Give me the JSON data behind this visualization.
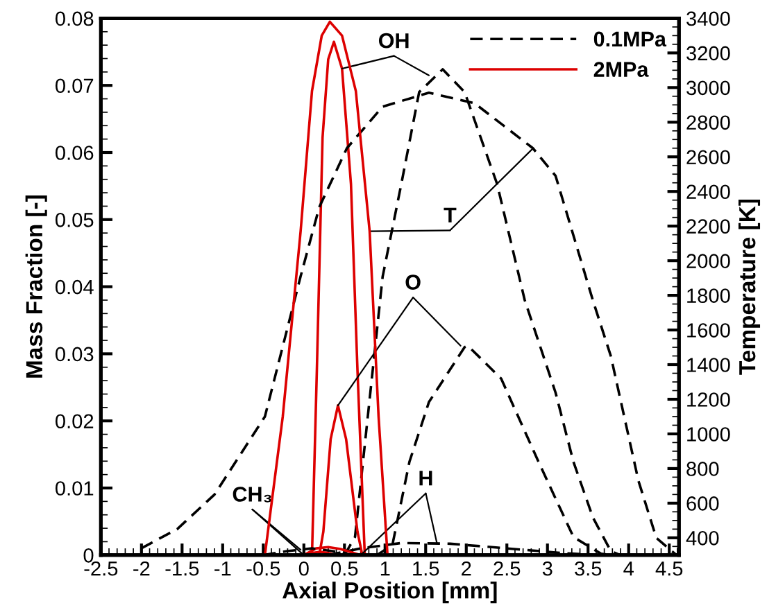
{
  "chart_data": {
    "type": "line",
    "xlabel": "Axial Position [mm]",
    "ylabel": "Mass Fraction [-]",
    "y2label": "Temperature [K]",
    "xlim": [
      -2.5,
      4.62
    ],
    "xticks": [
      -2.5,
      -2,
      -1.5,
      -1,
      -0.5,
      0,
      0.5,
      1,
      1.5,
      2,
      2.5,
      3,
      3.5,
      4,
      4.5
    ],
    "ylim": [
      0,
      0.08
    ],
    "yticks": [
      0,
      0.01,
      0.02,
      0.03,
      0.04,
      0.05,
      0.06,
      0.07,
      0.08
    ],
    "y2lim": [
      300,
      3400
    ],
    "y2ticks": [
      400,
      600,
      800,
      1000,
      1200,
      1400,
      1600,
      1800,
      2000,
      2200,
      2400,
      2600,
      2800,
      3000,
      3200,
      3400
    ],
    "legend": "top right",
    "grid": false,
    "marker": "none",
    "series": [
      {
        "name": "0.1MPa",
        "color": "#000000",
        "line_style": "dashed",
        "x": [
          0.5,
          0.63,
          0.97,
          1.2,
          1.42,
          1.71,
          1.98,
          2.38,
          2.72,
          3.1,
          3.32,
          3.56,
          3.78,
          3.9
        ],
        "values": [
          0,
          0.0027,
          0.0415,
          0.0553,
          0.069,
          0.0724,
          0.069,
          0.0553,
          0.038,
          0.0242,
          0.0139,
          0.0056,
          0.0006,
          0
        ]
      },
      {
        "name": "2MPa",
        "color": "#dd0000",
        "line_style": "solid",
        "x": [
          0.1,
          0.16,
          0.23,
          0.3,
          0.37,
          0.47,
          0.58,
          0.66,
          0.75
        ],
        "values": [
          0,
          0.0276,
          0.0622,
          0.0739,
          0.0765,
          0.0725,
          0.0553,
          0.0276,
          0
        ]
      },
      {
        "color": "#000000",
        "line_style": "dashed",
        "axis": "y2",
        "x": [
          -2.0,
          -1.56,
          -1.1,
          -0.48,
          -0.04,
          0.19,
          0.53,
          0.97,
          1.54,
          2.1,
          2.82,
          3.1,
          3.56,
          3.78,
          4.12,
          4.34,
          4.59
        ],
        "values": [
          340,
          450,
          650,
          1100,
          1910,
          2310,
          2650,
          2890,
          2970,
          2910,
          2650,
          2490,
          1770,
          1450,
          730,
          400,
          300
        ]
      },
      {
        "color": "#dd0000",
        "line_style": "solid",
        "axis": "y2",
        "x": [
          -0.48,
          -0.26,
          -0.04,
          0.1,
          0.22,
          0.32,
          0.47,
          0.64,
          0.81,
          0.92,
          1.03
        ],
        "values": [
          300,
          1100,
          2170,
          2980,
          3300,
          3380,
          3300,
          2980,
          2170,
          1100,
          300
        ]
      },
      {
        "color": "#000000",
        "line_style": "dashed",
        "x": [
          0.9,
          1.09,
          1.3,
          1.54,
          1.98,
          2.02,
          2.43,
          2.89,
          3.32,
          3.66,
          3.8
        ],
        "values": [
          0,
          0.0015,
          0.0139,
          0.0228,
          0.031,
          0.0312,
          0.0263,
          0.0139,
          0.0027,
          0.0002,
          0
        ]
      },
      {
        "color": "#dd0000",
        "line_style": "solid",
        "x": [
          0.19,
          0.24,
          0.33,
          0.42,
          0.52,
          0.66,
          0.72
        ],
        "values": [
          0,
          0.0035,
          0.0173,
          0.0223,
          0.0173,
          0.0035,
          0
        ]
      },
      {
        "color": "#000000",
        "line_style": "dashed",
        "x": [
          0.3,
          0.7,
          1.2,
          1.8,
          2.5,
          3.2,
          3.6
        ],
        "values": [
          0,
          0.001,
          0.0018,
          0.0017,
          0.001,
          0.0003,
          0
        ]
      },
      {
        "color": "#dd0000",
        "line_style": "solid",
        "x": [
          0.0,
          0.15,
          0.3,
          0.45,
          0.7
        ],
        "values": [
          0,
          0.001,
          0.0012,
          0.0009,
          0
        ]
      },
      {
        "color": "#000000",
        "line_style": "dashed",
        "x": [
          -0.5,
          -0.2,
          0.1,
          0.35,
          0.6
        ],
        "values": [
          0,
          0.0006,
          0.001,
          0.0006,
          0
        ]
      },
      {
        "color": "#dd0000",
        "line_style": "solid",
        "x": [
          0.0,
          0.1,
          0.2,
          0.3,
          0.4
        ],
        "values": [
          0,
          0.0003,
          0.0005,
          0.0003,
          0
        ]
      }
    ],
    "annotations": [
      {
        "text": "OH",
        "x": 1.54,
        "y": 0.0715
      },
      {
        "text": "T",
        "x": 2.82,
        "y": 0.0606
      },
      {
        "text": "O",
        "x": 1.93,
        "y": 0.0312
      },
      {
        "text": "H",
        "x": 1.64,
        "y": 0.0017
      },
      {
        "text": "CH₃",
        "x": -0.04,
        "y": 0.0008
      }
    ]
  }
}
